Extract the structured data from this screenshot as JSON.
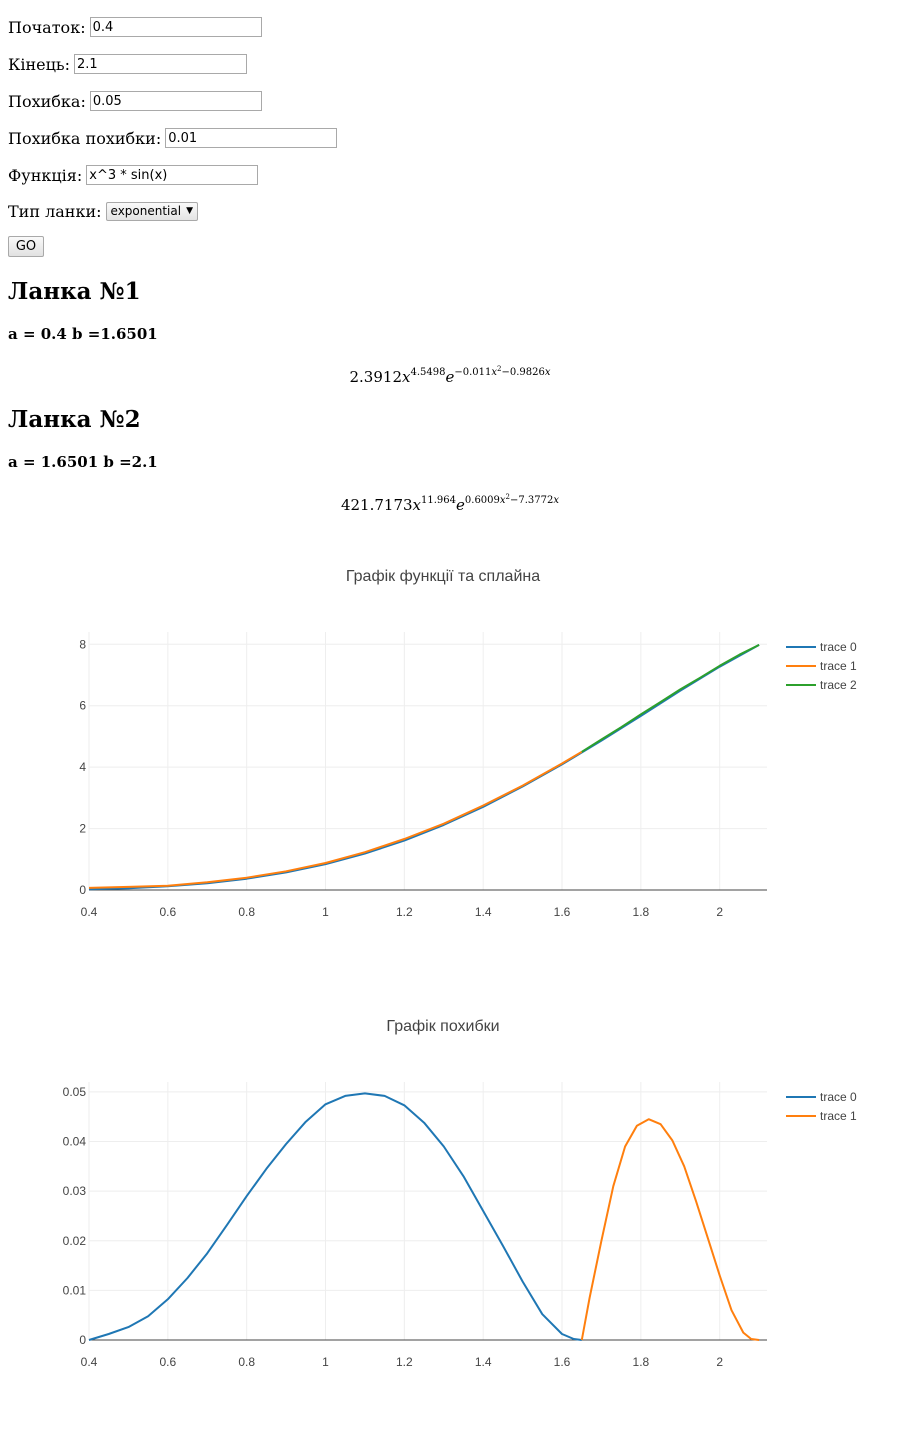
{
  "form": {
    "start": {
      "label": "Початок:",
      "value": "0.4"
    },
    "end": {
      "label": "Кінець:",
      "value": "2.1"
    },
    "error": {
      "label": "Похибка:",
      "value": "0.05"
    },
    "error_of_error": {
      "label": "Похибка похибки:",
      "value": "0.01"
    },
    "function": {
      "label": "Функція:",
      "value": "x^3 * sin(x)"
    },
    "link_type": {
      "label": "Тип ланки:",
      "selected": "exponential"
    },
    "go_label": "GO"
  },
  "links": [
    {
      "heading": "Ланка №1",
      "range": "a = 0.4 b =1.6501",
      "coef": "2.3912",
      "var": "x",
      "power": "4.5498",
      "exp_base": "e",
      "exp_prefix": "−0.011",
      "exp_var": "x",
      "exp_sq": "2",
      "exp_suffix": "−0.9826",
      "exp_var2": "x"
    },
    {
      "heading": "Ланка №2",
      "range": "a = 1.6501 b =2.1",
      "coef": "421.7173",
      "var": "x",
      "power": "11.964",
      "exp_base": "e",
      "exp_prefix": "0.6009",
      "exp_var": "x",
      "exp_sq": "2",
      "exp_suffix": "−7.3772",
      "exp_var2": "x"
    }
  ],
  "colors": {
    "trace0": "#1f77b4",
    "trace1": "#ff7f0e",
    "trace2": "#2ca02c",
    "grid": "#eeeeee",
    "axis": "#444444"
  },
  "chart_data": [
    {
      "type": "line",
      "title": "Графік функції та сплайна",
      "xlim": [
        0.4,
        2.12
      ],
      "ylim": [
        0,
        8.4
      ],
      "xticks": [
        0.4,
        0.6,
        0.8,
        1,
        1.2,
        1.4,
        1.6,
        1.8,
        2
      ],
      "xtick_labels": [
        "0.4",
        "0.6",
        "0.8",
        "1",
        "1.2",
        "1.4",
        "1.6",
        "1.8",
        "2"
      ],
      "yticks": [
        0,
        2,
        4,
        6,
        8
      ],
      "ytick_labels": [
        "0",
        "2",
        "4",
        "6",
        "8"
      ],
      "grid": true,
      "legend_position": "top-right",
      "series": [
        {
          "name": "trace 0",
          "color": "#1f77b4",
          "x": [
            0.4,
            0.5,
            0.6,
            0.7,
            0.8,
            0.9,
            1.0,
            1.1,
            1.2,
            1.3,
            1.4,
            1.5,
            1.6,
            1.7,
            1.8,
            1.9,
            2.0,
            2.1
          ],
          "y": [
            0.025,
            0.06,
            0.122,
            0.221,
            0.367,
            0.572,
            0.841,
            1.187,
            1.61,
            2.12,
            2.71,
            3.37,
            4.09,
            4.86,
            5.67,
            6.49,
            7.27,
            7.98
          ]
        },
        {
          "name": "trace 1",
          "color": "#ff7f0e",
          "x": [
            0.4,
            0.5,
            0.6,
            0.7,
            0.8,
            0.9,
            1.0,
            1.1,
            1.2,
            1.3,
            1.4,
            1.5,
            1.6,
            1.65
          ],
          "y": [
            0.07,
            0.1,
            0.14,
            0.25,
            0.4,
            0.61,
            0.88,
            1.23,
            1.66,
            2.16,
            2.75,
            3.4,
            4.12,
            4.5
          ]
        },
        {
          "name": "trace 2",
          "color": "#2ca02c",
          "x": [
            1.6501,
            1.7,
            1.75,
            1.8,
            1.85,
            1.9,
            1.95,
            2.0,
            2.05,
            2.1
          ],
          "y": [
            4.5,
            4.9,
            5.3,
            5.72,
            6.12,
            6.53,
            6.91,
            7.3,
            7.66,
            7.98
          ]
        }
      ]
    },
    {
      "type": "line",
      "title": "Графік похибки",
      "xlim": [
        0.4,
        2.12
      ],
      "ylim": [
        0,
        0.052
      ],
      "xticks": [
        0.4,
        0.6,
        0.8,
        1,
        1.2,
        1.4,
        1.6,
        1.8,
        2
      ],
      "xtick_labels": [
        "0.4",
        "0.6",
        "0.8",
        "1",
        "1.2",
        "1.4",
        "1.6",
        "1.8",
        "2"
      ],
      "yticks": [
        0,
        0.01,
        0.02,
        0.03,
        0.04,
        0.05
      ],
      "ytick_labels": [
        "0",
        "0.01",
        "0.02",
        "0.03",
        "0.04",
        "0.05"
      ],
      "grid": true,
      "legend_position": "top-right",
      "series": [
        {
          "name": "trace 0",
          "color": "#1f77b4",
          "x": [
            0.4,
            0.45,
            0.5,
            0.55,
            0.6,
            0.65,
            0.7,
            0.75,
            0.8,
            0.85,
            0.9,
            0.95,
            1.0,
            1.05,
            1.1,
            1.15,
            1.2,
            1.25,
            1.3,
            1.35,
            1.4,
            1.45,
            1.5,
            1.55,
            1.6,
            1.63,
            1.65
          ],
          "y": [
            0.0,
            0.0012,
            0.0026,
            0.0048,
            0.0082,
            0.0125,
            0.0175,
            0.0232,
            0.029,
            0.0345,
            0.0395,
            0.044,
            0.0475,
            0.0492,
            0.0497,
            0.0492,
            0.0473,
            0.0438,
            0.039,
            0.033,
            0.026,
            0.019,
            0.0118,
            0.0052,
            0.0012,
            0.0002,
            0.0
          ]
        },
        {
          "name": "trace 1",
          "color": "#ff7f0e",
          "x": [
            1.6501,
            1.67,
            1.7,
            1.73,
            1.76,
            1.79,
            1.82,
            1.85,
            1.88,
            1.91,
            1.94,
            1.97,
            2.0,
            2.03,
            2.06,
            2.08,
            2.1
          ],
          "y": [
            0.0,
            0.0085,
            0.02,
            0.031,
            0.039,
            0.0432,
            0.0445,
            0.0435,
            0.0402,
            0.035,
            0.028,
            0.0205,
            0.013,
            0.006,
            0.0015,
            0.0002,
            0.0
          ]
        }
      ]
    }
  ]
}
